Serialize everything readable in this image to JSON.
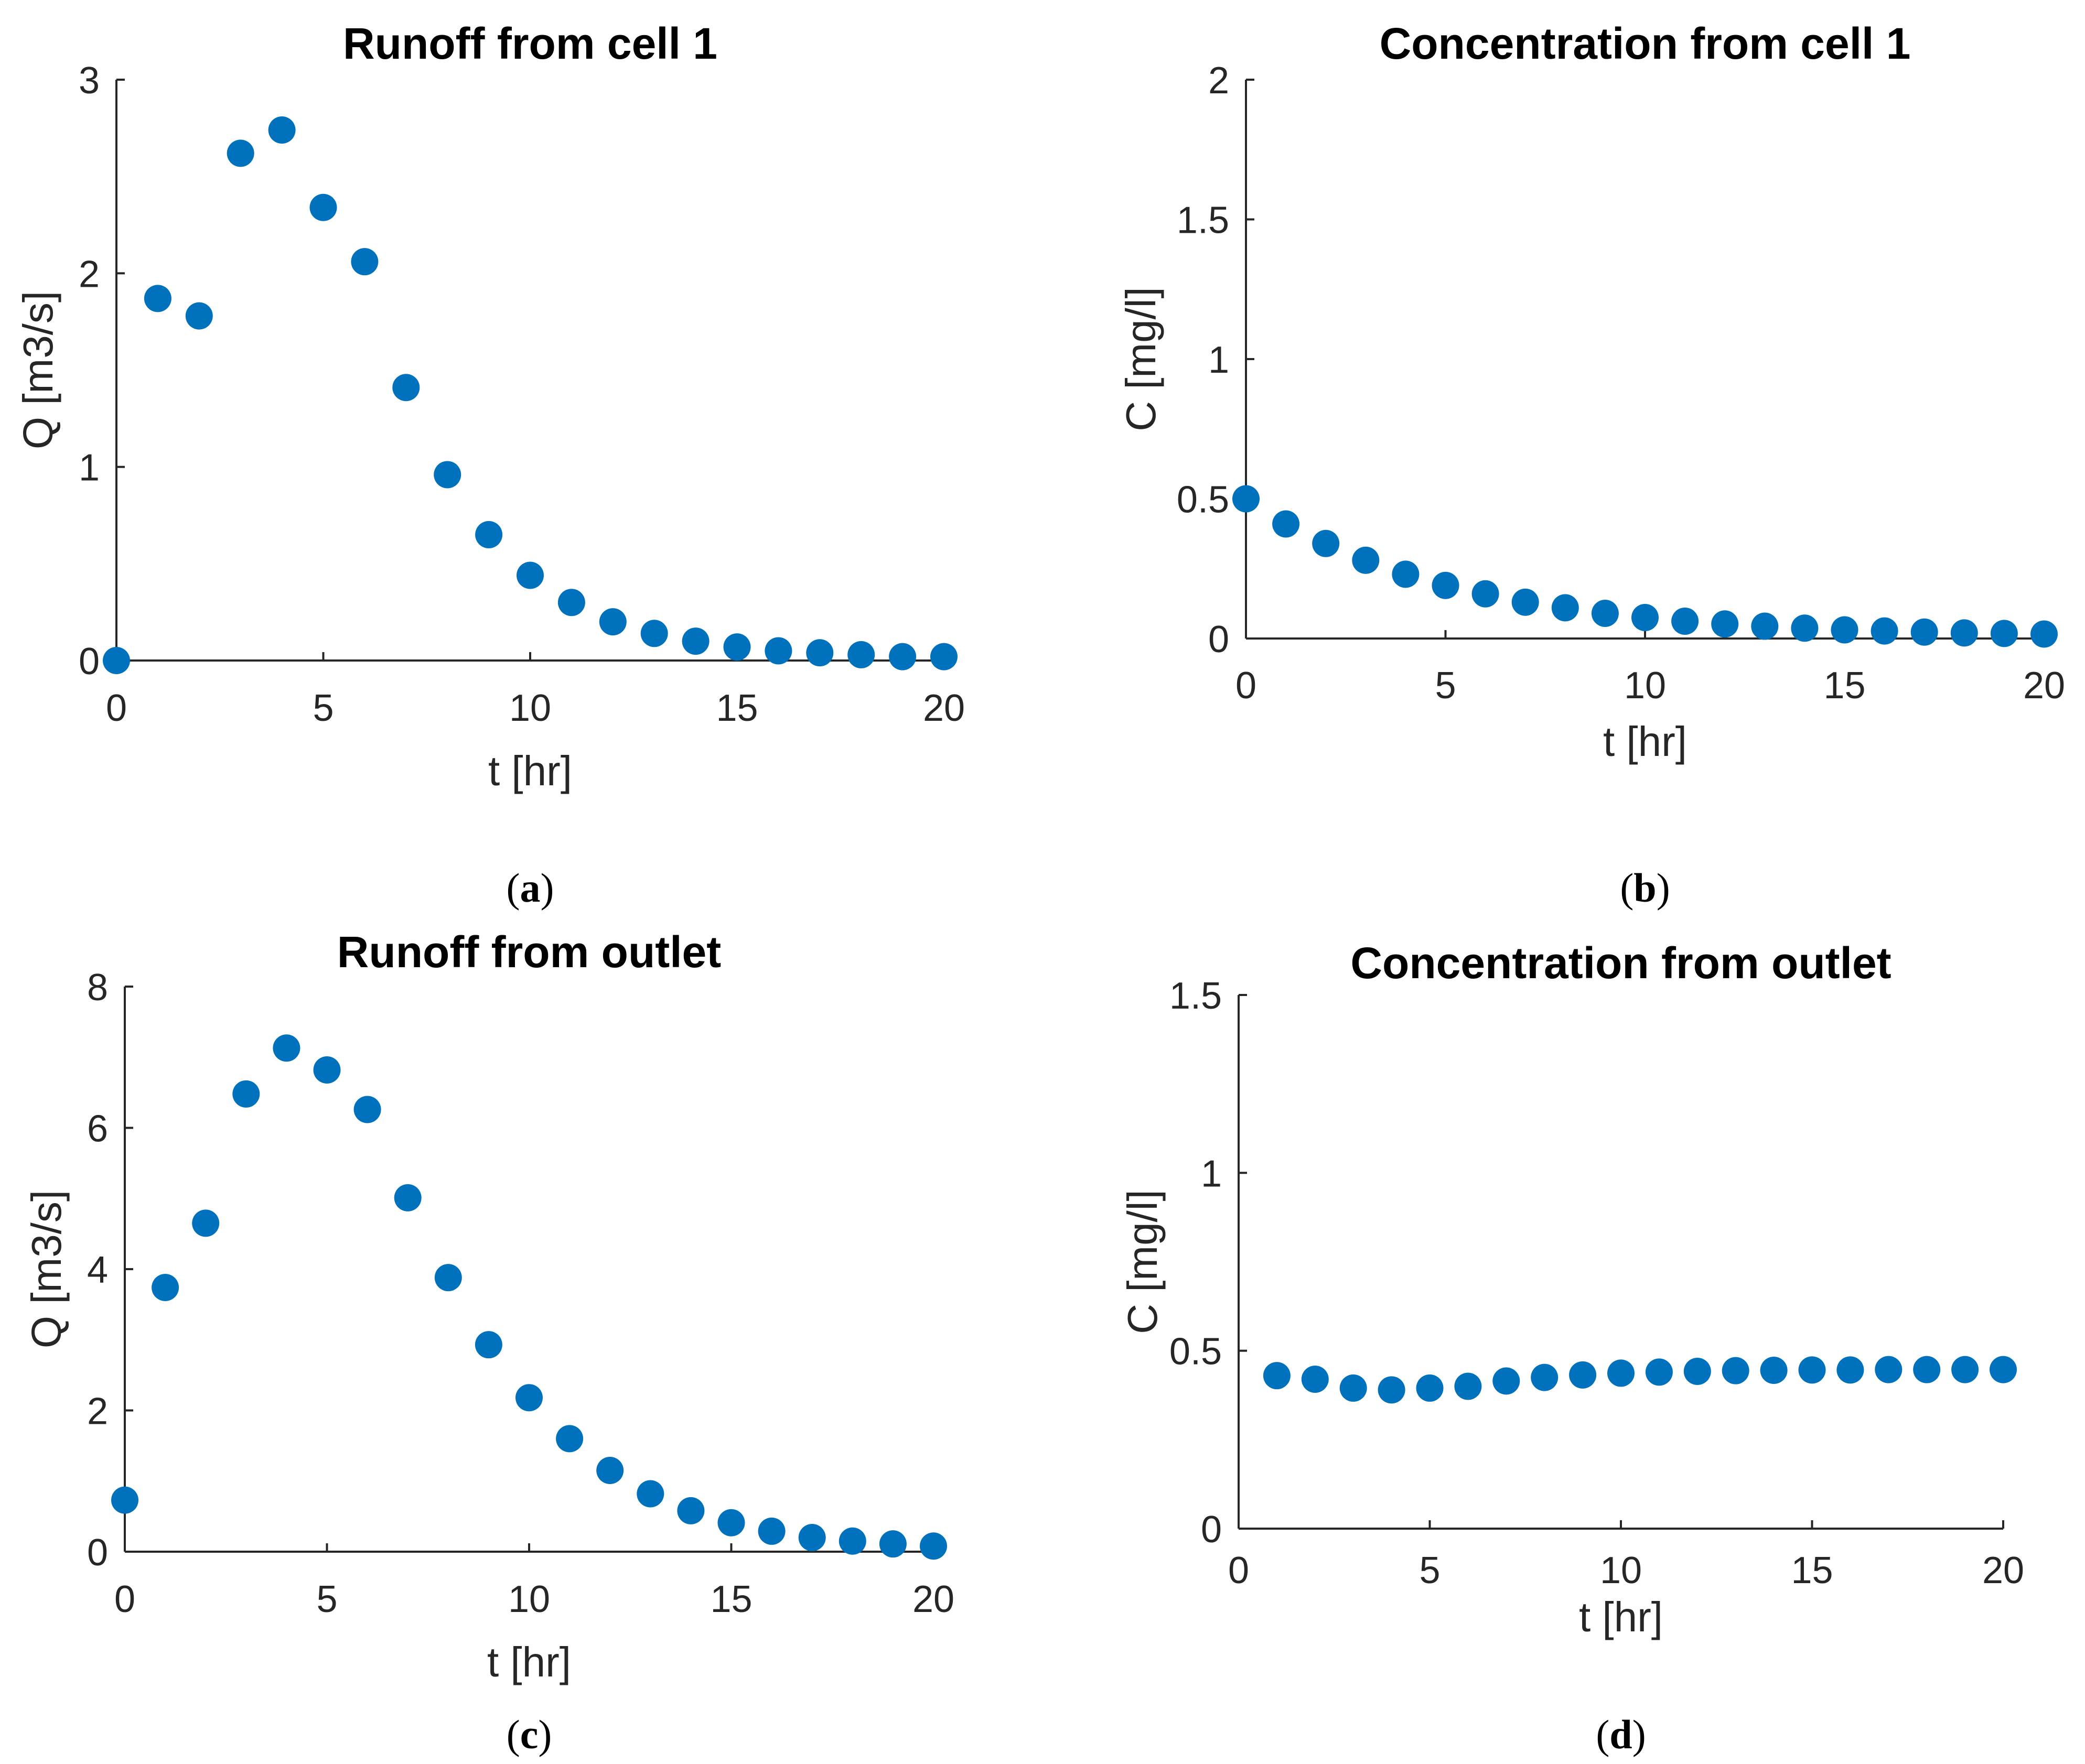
{
  "marker_color": "#0072BD",
  "chart_data": [
    {
      "id": "a",
      "type": "scatter",
      "title": "Runoff from cell 1",
      "xlabel": "t [hr]",
      "ylabel": "Q [m3/s]",
      "xlim": [
        0,
        20
      ],
      "ylim": [
        0,
        3
      ],
      "xticks": [
        0,
        5,
        10,
        15,
        20
      ],
      "yticks": [
        0,
        1,
        2,
        3
      ],
      "subplot_label": "a",
      "x": [
        0,
        1,
        2,
        3,
        4,
        5,
        6,
        7,
        8,
        9,
        10,
        11,
        12,
        13,
        14,
        15,
        16,
        17,
        18,
        19,
        20
      ],
      "y": [
        0,
        1.87,
        1.78,
        2.62,
        2.74,
        2.34,
        2.06,
        1.41,
        0.96,
        0.65,
        0.44,
        0.3,
        0.2,
        0.14,
        0.1,
        0.07,
        0.05,
        0.04,
        0.03,
        0.02,
        0.02
      ]
    },
    {
      "id": "b",
      "type": "scatter",
      "title": "Concentration from cell 1",
      "xlabel": "t [hr]",
      "ylabel": "C [mg/l]",
      "xlim": [
        0,
        20
      ],
      "ylim": [
        0,
        2
      ],
      "xticks": [
        0,
        5,
        10,
        15,
        20
      ],
      "yticks": [
        0,
        0.5,
        1,
        1.5,
        2
      ],
      "subplot_label": "b",
      "x": [
        0,
        1,
        2,
        3,
        4,
        5,
        6,
        7,
        8,
        9,
        10,
        11,
        12,
        13,
        14,
        15,
        16,
        17,
        18,
        19,
        20
      ],
      "y": [
        0.5,
        0.41,
        0.34,
        0.28,
        0.23,
        0.19,
        0.16,
        0.13,
        0.11,
        0.09,
        0.075,
        0.062,
        0.052,
        0.044,
        0.037,
        0.031,
        0.027,
        0.023,
        0.02,
        0.018,
        0.016
      ]
    },
    {
      "id": "c",
      "type": "scatter",
      "title": "Runoff from outlet",
      "xlabel": "t [hr]",
      "ylabel": "Q [m3/s]",
      "xlim": [
        0,
        20
      ],
      "ylim": [
        0,
        8
      ],
      "xticks": [
        0,
        5,
        10,
        15,
        20
      ],
      "yticks": [
        0,
        2,
        4,
        6,
        8
      ],
      "subplot_label": "c",
      "x": [
        0,
        1,
        2,
        3,
        4,
        5,
        6,
        7,
        8,
        9,
        10,
        11,
        12,
        13,
        14,
        15,
        16,
        17,
        18,
        19,
        20
      ],
      "y": [
        0.73,
        3.74,
        4.65,
        6.48,
        7.13,
        6.82,
        6.26,
        5.01,
        3.88,
        2.93,
        2.18,
        1.6,
        1.15,
        0.82,
        0.58,
        0.41,
        0.29,
        0.2,
        0.15,
        0.11,
        0.08
      ]
    },
    {
      "id": "d",
      "type": "scatter",
      "title": "Concentration from outlet",
      "xlabel": "t [hr]",
      "ylabel": "C [mg/l]",
      "xlim": [
        0,
        20
      ],
      "ylim": [
        0,
        1.5
      ],
      "xticks": [
        0,
        5,
        10,
        15,
        20
      ],
      "yticks": [
        0,
        0.5,
        1,
        1.5
      ],
      "subplot_label": "d",
      "x": [
        1,
        2,
        3,
        4,
        5,
        6,
        7,
        8,
        9,
        10,
        11,
        12,
        13,
        14,
        15,
        16,
        17,
        18,
        19,
        20
      ],
      "y": [
        0.43,
        0.42,
        0.395,
        0.39,
        0.395,
        0.4,
        0.415,
        0.425,
        0.432,
        0.437,
        0.44,
        0.442,
        0.444,
        0.445,
        0.446,
        0.446,
        0.447,
        0.447,
        0.447,
        0.447
      ]
    }
  ]
}
